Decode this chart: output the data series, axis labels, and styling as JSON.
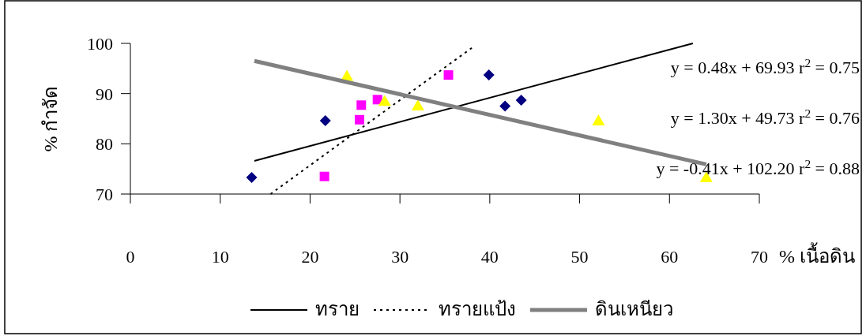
{
  "chart_data": {
    "type": "scatter",
    "xlabel": "% เนื้อดิน",
    "ylabel": "% กำจัด",
    "xlim": [
      0,
      70
    ],
    "xticks": [
      0,
      10,
      20,
      30,
      40,
      50,
      60,
      70
    ],
    "ylim": [
      70,
      100
    ],
    "yticks": [
      70,
      80,
      90,
      100
    ],
    "grid": false,
    "legend": "bottom",
    "annotations": [
      "y = 0.48x + 69.93 r$^{2}$ = 0.75",
      "y = 1.30x + 49.73 r$^{2}$ = 0.76",
      "y = -0.41x + 102.20 r$^{2}$ = 0.88"
    ],
    "series": [
      {
        "marker": "diamond",
        "color": "#000080",
        "x": [
          13.5,
          21.7,
          39.9,
          41.7,
          43.5
        ],
        "values": [
          73.3,
          84.6,
          93.7,
          87.5,
          88.7
        ]
      },
      {
        "marker": "square",
        "color": "#ff00ff",
        "x": [
          21.6,
          25.5,
          25.7,
          27.5,
          35.4
        ],
        "values": [
          73.5,
          84.8,
          87.7,
          88.8,
          93.7
        ]
      },
      {
        "marker": "triangle",
        "color": "#ffff00",
        "x": [
          24.1,
          28.3,
          32.0,
          52.1,
          64.1
        ],
        "values": [
          93.5,
          88.5,
          87.6,
          84.6,
          73.3
        ]
      },
      {
        "type": "line",
        "name": "ทราย",
        "color": "#000000",
        "line_style": "solid",
        "x": [
          13.8,
          62.6
        ],
        "values": [
          76.6,
          100
        ]
      },
      {
        "type": "line",
        "name": "ทรายแป้ง",
        "color": "#000000",
        "line_style": "dotted",
        "x": [
          15.6,
          38
        ],
        "values": [
          70,
          99.1
        ]
      },
      {
        "type": "line",
        "name": "ดินเหนียว",
        "color": "#808080",
        "line_style": "solid",
        "x": [
          13.8,
          64.1
        ],
        "values": [
          96.5,
          75.9
        ]
      }
    ]
  }
}
